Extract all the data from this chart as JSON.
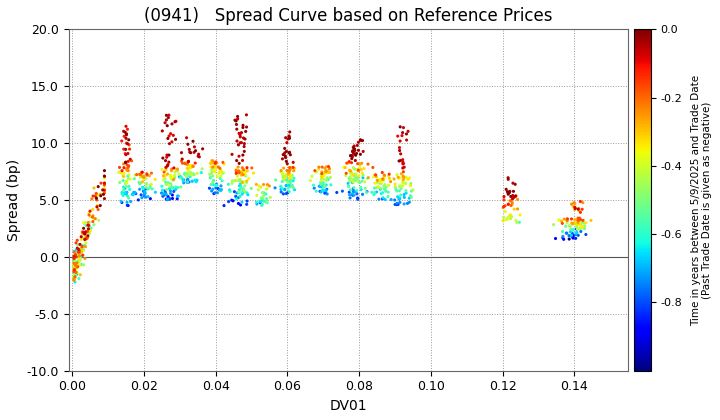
{
  "title": "(0941)   Spread Curve based on Reference Prices",
  "xlabel": "DV01",
  "ylabel": "Spread (bp)",
  "xlim": [
    -0.001,
    0.155
  ],
  "ylim": [
    -10.0,
    20.0
  ],
  "yticks": [
    -10.0,
    -5.0,
    0.0,
    5.0,
    10.0,
    15.0,
    20.0
  ],
  "xticks": [
    0.0,
    0.02,
    0.04,
    0.06,
    0.08,
    0.1,
    0.12,
    0.14
  ],
  "colorbar_label": "Time in years between 5/9/2025 and Trade Date\n(Past Trade Date is given as negative)",
  "colorbar_vmin": -1.0,
  "colorbar_vmax": 0.0,
  "colorbar_ticks": [
    0.0,
    -0.2,
    -0.4,
    -0.6,
    -0.8
  ],
  "marker_size": 5,
  "background_color": "#ffffff",
  "grid_color": "#999999",
  "title_fontsize": 12
}
